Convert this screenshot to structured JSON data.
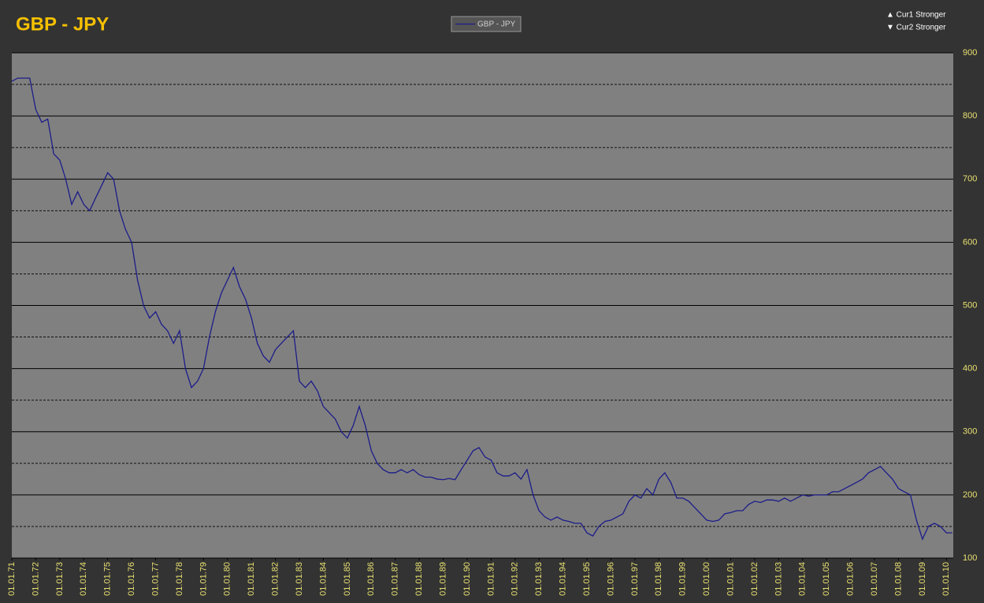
{
  "chart_data": {
    "type": "line",
    "title": "GBP - JPY",
    "annotations": [
      "▲ Cur1 Stronger",
      "▼ Cur2 Stronger"
    ],
    "legend": "top-center",
    "ylim": [
      100,
      900
    ],
    "yticks": [
      100,
      200,
      300,
      400,
      500,
      600,
      700,
      800,
      900
    ],
    "y_minor_grid": [
      150,
      250,
      350,
      450,
      550,
      650,
      750,
      850
    ],
    "grid": true,
    "xlim": [
      "1971-01-01",
      "2010-04-15"
    ],
    "xticks": [
      {
        "value": "1971-01-01",
        "label": "01.01.71"
      },
      {
        "value": "1972-01-01",
        "label": "01.01.72"
      },
      {
        "value": "1973-01-01",
        "label": "01.01.73"
      },
      {
        "value": "1974-01-01",
        "label": "01.01.74"
      },
      {
        "value": "1975-01-01",
        "label": "01.01.75"
      },
      {
        "value": "1976-01-01",
        "label": "01.01.76"
      },
      {
        "value": "1977-01-01",
        "label": "01.01.77"
      },
      {
        "value": "1978-01-01",
        "label": "01.01.78"
      },
      {
        "value": "1979-01-01",
        "label": "01.01.79"
      },
      {
        "value": "1980-01-01",
        "label": "01.01.80"
      },
      {
        "value": "1981-01-01",
        "label": "01.01.81"
      },
      {
        "value": "1982-01-01",
        "label": "01.01.82"
      },
      {
        "value": "1983-01-01",
        "label": "01.01.83"
      },
      {
        "value": "1984-01-01",
        "label": "01.01.84"
      },
      {
        "value": "1985-01-01",
        "label": "01.01.85"
      },
      {
        "value": "1986-01-01",
        "label": "01.01.86"
      },
      {
        "value": "1987-01-01",
        "label": "01.01.87"
      },
      {
        "value": "1988-01-01",
        "label": "01.01.88"
      },
      {
        "value": "1989-01-01",
        "label": "01.01.89"
      },
      {
        "value": "1990-01-01",
        "label": "01.01.90"
      },
      {
        "value": "1991-01-01",
        "label": "01.01.91"
      },
      {
        "value": "1992-01-01",
        "label": "01.01.92"
      },
      {
        "value": "1993-01-01",
        "label": "01.01.93"
      },
      {
        "value": "1994-01-01",
        "label": "01.01.94"
      },
      {
        "value": "1995-01-01",
        "label": "01.01.95"
      },
      {
        "value": "1996-01-01",
        "label": "01.01.96"
      },
      {
        "value": "1997-01-01",
        "label": "01.01.97"
      },
      {
        "value": "1998-01-01",
        "label": "01.01.98"
      },
      {
        "value": "1999-01-01",
        "label": "01.01.99"
      },
      {
        "value": "2000-01-01",
        "label": "01.01.00"
      },
      {
        "value": "2001-01-01",
        "label": "01.01.01"
      },
      {
        "value": "2002-01-01",
        "label": "01.01.02"
      },
      {
        "value": "2003-01-01",
        "label": "01.01.03"
      },
      {
        "value": "2004-01-01",
        "label": "01.01.04"
      },
      {
        "value": "2005-01-01",
        "label": "01.01.05"
      },
      {
        "value": "2006-01-01",
        "label": "01.01.06"
      },
      {
        "value": "2007-01-01",
        "label": "01.01.07"
      },
      {
        "value": "2008-01-01",
        "label": "01.01.08"
      },
      {
        "value": "2009-01-01",
        "label": "01.01.09"
      },
      {
        "value": "2010-01-01",
        "label": "01.01.10"
      }
    ],
    "x": [
      "1971-01-01",
      "1971-04-01",
      "1971-07-01",
      "1971-10-01",
      "1972-01-01",
      "1972-04-01",
      "1972-07-01",
      "1972-10-01",
      "1973-01-01",
      "1973-04-01",
      "1973-07-01",
      "1973-10-01",
      "1974-01-01",
      "1974-04-01",
      "1974-07-01",
      "1974-10-01",
      "1975-01-01",
      "1975-04-01",
      "1975-07-01",
      "1975-10-01",
      "1976-01-01",
      "1976-04-01",
      "1976-07-01",
      "1976-10-01",
      "1977-01-01",
      "1977-04-01",
      "1977-07-01",
      "1977-10-01",
      "1978-01-01",
      "1978-04-01",
      "1978-07-01",
      "1978-10-01",
      "1979-01-01",
      "1979-04-01",
      "1979-07-01",
      "1979-10-01",
      "1980-01-01",
      "1980-04-01",
      "1980-07-01",
      "1980-10-01",
      "1981-01-01",
      "1981-04-01",
      "1981-07-01",
      "1981-10-01",
      "1982-01-01",
      "1982-04-01",
      "1982-07-01",
      "1982-10-01",
      "1983-01-01",
      "1983-04-01",
      "1983-07-01",
      "1983-10-01",
      "1984-01-01",
      "1984-04-01",
      "1984-07-01",
      "1984-10-01",
      "1985-01-01",
      "1985-04-01",
      "1985-07-01",
      "1985-10-01",
      "1986-01-01",
      "1986-04-01",
      "1986-07-01",
      "1986-10-01",
      "1987-01-01",
      "1987-04-01",
      "1987-07-01",
      "1987-10-01",
      "1988-01-01",
      "1988-04-01",
      "1988-07-01",
      "1988-10-01",
      "1989-01-01",
      "1989-04-01",
      "1989-07-01",
      "1989-10-01",
      "1990-01-01",
      "1990-04-01",
      "1990-07-01",
      "1990-10-01",
      "1991-01-01",
      "1991-04-01",
      "1991-07-01",
      "1991-10-01",
      "1992-01-01",
      "1992-04-01",
      "1992-07-01",
      "1992-10-01",
      "1993-01-01",
      "1993-04-01",
      "1993-07-01",
      "1993-10-01",
      "1994-01-01",
      "1994-04-01",
      "1994-07-01",
      "1994-10-01",
      "1995-01-01",
      "1995-04-01",
      "1995-07-01",
      "1995-10-01",
      "1996-01-01",
      "1996-04-01",
      "1996-07-01",
      "1996-10-01",
      "1997-01-01",
      "1997-04-01",
      "1997-07-01",
      "1997-10-01",
      "1998-01-01",
      "1998-04-01",
      "1998-07-01",
      "1998-10-01",
      "1999-01-01",
      "1999-04-01",
      "1999-07-01",
      "1999-10-01",
      "2000-01-01",
      "2000-04-01",
      "2000-07-01",
      "2000-10-01",
      "2001-01-01",
      "2001-04-01",
      "2001-07-01",
      "2001-10-01",
      "2002-01-01",
      "2002-04-01",
      "2002-07-01",
      "2002-10-01",
      "2003-01-01",
      "2003-04-01",
      "2003-07-01",
      "2003-10-01",
      "2004-01-01",
      "2004-04-01",
      "2004-07-01",
      "2004-10-01",
      "2005-01-01",
      "2005-04-01",
      "2005-07-01",
      "2005-10-01",
      "2006-01-01",
      "2006-04-01",
      "2006-07-01",
      "2006-10-01",
      "2007-01-01",
      "2007-04-01",
      "2007-07-01",
      "2007-10-01",
      "2008-01-01",
      "2008-04-01",
      "2008-07-01",
      "2008-10-01",
      "2009-01-01",
      "2009-04-01",
      "2009-07-01",
      "2009-10-01",
      "2010-01-01",
      "2010-04-01"
    ],
    "series": [
      {
        "name": "GBP - JPY",
        "color": "#1c1c8a",
        "values": [
          855,
          860,
          860,
          860,
          810,
          790,
          795,
          740,
          730,
          700,
          660,
          680,
          660,
          650,
          670,
          690,
          710,
          700,
          650,
          620,
          600,
          540,
          500,
          480,
          490,
          470,
          460,
          440,
          460,
          400,
          370,
          380,
          400,
          450,
          490,
          520,
          540,
          560,
          530,
          510,
          480,
          440,
          420,
          410,
          430,
          440,
          450,
          460,
          380,
          370,
          380,
          365,
          340,
          330,
          320,
          300,
          290,
          310,
          340,
          310,
          270,
          250,
          240,
          235,
          235,
          240,
          235,
          240,
          232,
          228,
          228,
          225,
          224,
          226,
          224,
          240,
          255,
          270,
          275,
          260,
          255,
          235,
          230,
          230,
          235,
          225,
          240,
          200,
          175,
          165,
          160,
          165,
          160,
          158,
          155,
          155,
          140,
          135,
          150,
          158,
          160,
          165,
          170,
          190,
          200,
          195,
          210,
          200,
          225,
          235,
          220,
          195,
          195,
          190,
          180,
          170,
          160,
          158,
          160,
          170,
          172,
          175,
          175,
          185,
          190,
          188,
          192,
          192,
          190,
          195,
          190,
          195,
          200,
          198,
          200,
          200,
          200,
          205,
          205,
          210,
          215,
          220,
          225,
          235,
          240,
          245,
          235,
          225,
          210,
          205,
          200,
          160,
          130,
          150,
          155,
          150,
          140,
          140
        ]
      }
    ]
  }
}
